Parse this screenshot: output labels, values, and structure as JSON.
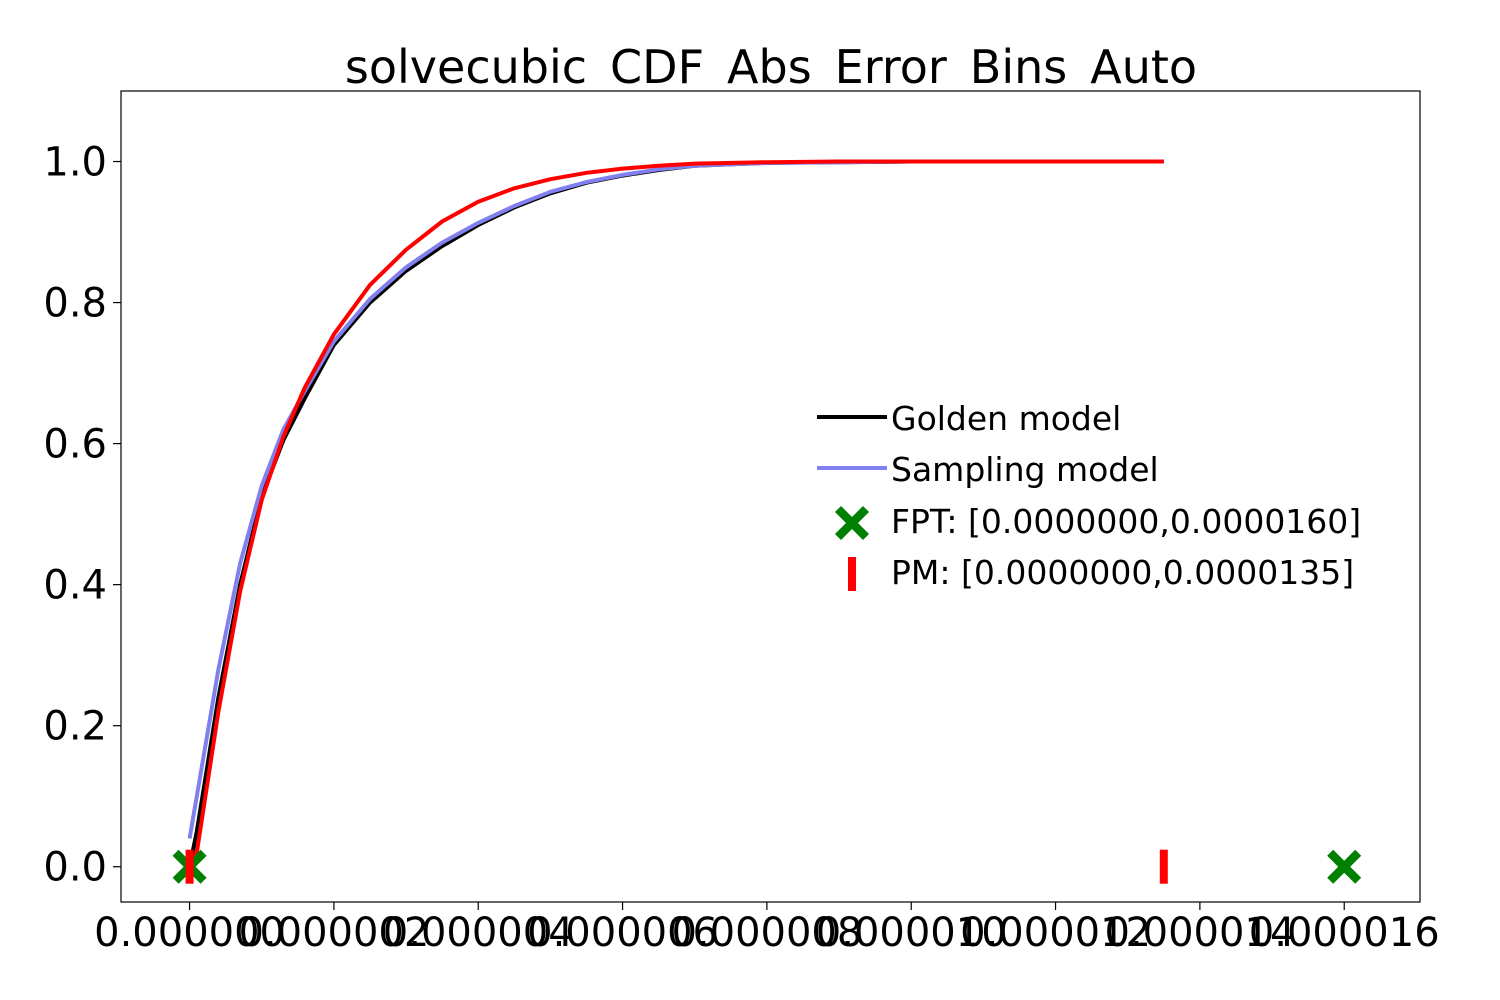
{
  "chart_data": {
    "type": "line",
    "title": "solvecubic_CDF_Abs_Error_Bins_Auto",
    "xlabel": "",
    "ylabel": "",
    "xlim": [
      -9.5e-07,
      1.705e-05
    ],
    "ylim": [
      -0.05,
      1.1
    ],
    "x_ticks": [
      0,
      2e-06,
      4e-06,
      6e-06,
      8e-06,
      1e-05,
      1.2e-05,
      1.4e-05,
      1.6e-05
    ],
    "x_tick_labels": [
      "0.000000",
      "0.000002",
      "0.000004",
      "0.000006",
      "0.000008",
      "0.000010",
      "0.000012",
      "0.000014",
      "0.000016"
    ],
    "y_ticks": [
      0,
      0.2,
      0.4,
      0.6,
      0.8,
      1.0
    ],
    "y_tick_labels": [
      "0.0",
      "0.2",
      "0.4",
      "0.6",
      "0.8",
      "1.0"
    ],
    "grid": false,
    "legend_position": "center-right",
    "series": [
      {
        "name": "Golden model",
        "color": "#000000",
        "x": [
          0.0,
          1e-07,
          4e-07,
          7e-07,
          1e-06,
          1.3e-06,
          1.6e-06,
          2e-06,
          2.5e-06,
          3e-06,
          3.5e-06,
          4e-06,
          4.5e-06,
          5e-06,
          5.5e-06,
          6e-06,
          6.5e-06,
          7e-06,
          8e-06,
          9e-06,
          1e-05,
          1.15e-05,
          1.35e-05
        ],
        "y": [
          0.0,
          0.05,
          0.24,
          0.4,
          0.525,
          0.605,
          0.665,
          0.74,
          0.8,
          0.845,
          0.88,
          0.91,
          0.935,
          0.955,
          0.97,
          0.98,
          0.988,
          0.994,
          0.998,
          0.999,
          1.0,
          1.0,
          1.0
        ]
      },
      {
        "name": "Sampling model",
        "color": "#8080ee",
        "x": [
          0.0,
          1e-07,
          4e-07,
          7e-07,
          1e-06,
          1.3e-06,
          1.6e-06,
          2e-06,
          2.5e-06,
          3e-06,
          3.5e-06,
          4e-06,
          4.5e-06,
          5e-06,
          5.5e-06,
          6e-06,
          6.5e-06,
          7e-06,
          8e-06,
          9e-06,
          1e-05,
          1.15e-05,
          1.35e-05
        ],
        "y": [
          0.04,
          0.1,
          0.28,
          0.43,
          0.54,
          0.62,
          0.675,
          0.745,
          0.805,
          0.85,
          0.885,
          0.913,
          0.937,
          0.957,
          0.971,
          0.981,
          0.989,
          0.994,
          0.998,
          0.999,
          1.0,
          1.0,
          1.0
        ]
      },
      {
        "name": "",
        "color": "#ff0000",
        "x": [
          0.0,
          1e-07,
          4e-07,
          7e-07,
          1e-06,
          1.3e-06,
          1.6e-06,
          2e-06,
          2.5e-06,
          3e-06,
          3.5e-06,
          4e-06,
          4.5e-06,
          5e-06,
          5.5e-06,
          6e-06,
          6.5e-06,
          7e-06,
          8e-06,
          9e-06,
          1e-05,
          1.15e-05,
          1.35e-05
        ],
        "y": [
          0.0,
          0.02,
          0.22,
          0.39,
          0.52,
          0.61,
          0.68,
          0.755,
          0.825,
          0.875,
          0.915,
          0.943,
          0.962,
          0.975,
          0.984,
          0.99,
          0.994,
          0.997,
          0.999,
          1.0,
          1.0,
          1.0,
          1.0
        ]
      }
    ],
    "markers": [
      {
        "name": "FPT: [0.0000000,0.0000160]",
        "symbol": "X",
        "color": "#008000",
        "points": [
          [
            0.0,
            0.0
          ],
          [
            1.6e-05,
            0.0
          ]
        ]
      },
      {
        "name": "PM: [0.0000000,0.0000135]",
        "symbol": "|",
        "color": "#ff0000",
        "points": [
          [
            0.0,
            0.0
          ],
          [
            1.35e-05,
            0.0
          ]
        ]
      }
    ]
  }
}
